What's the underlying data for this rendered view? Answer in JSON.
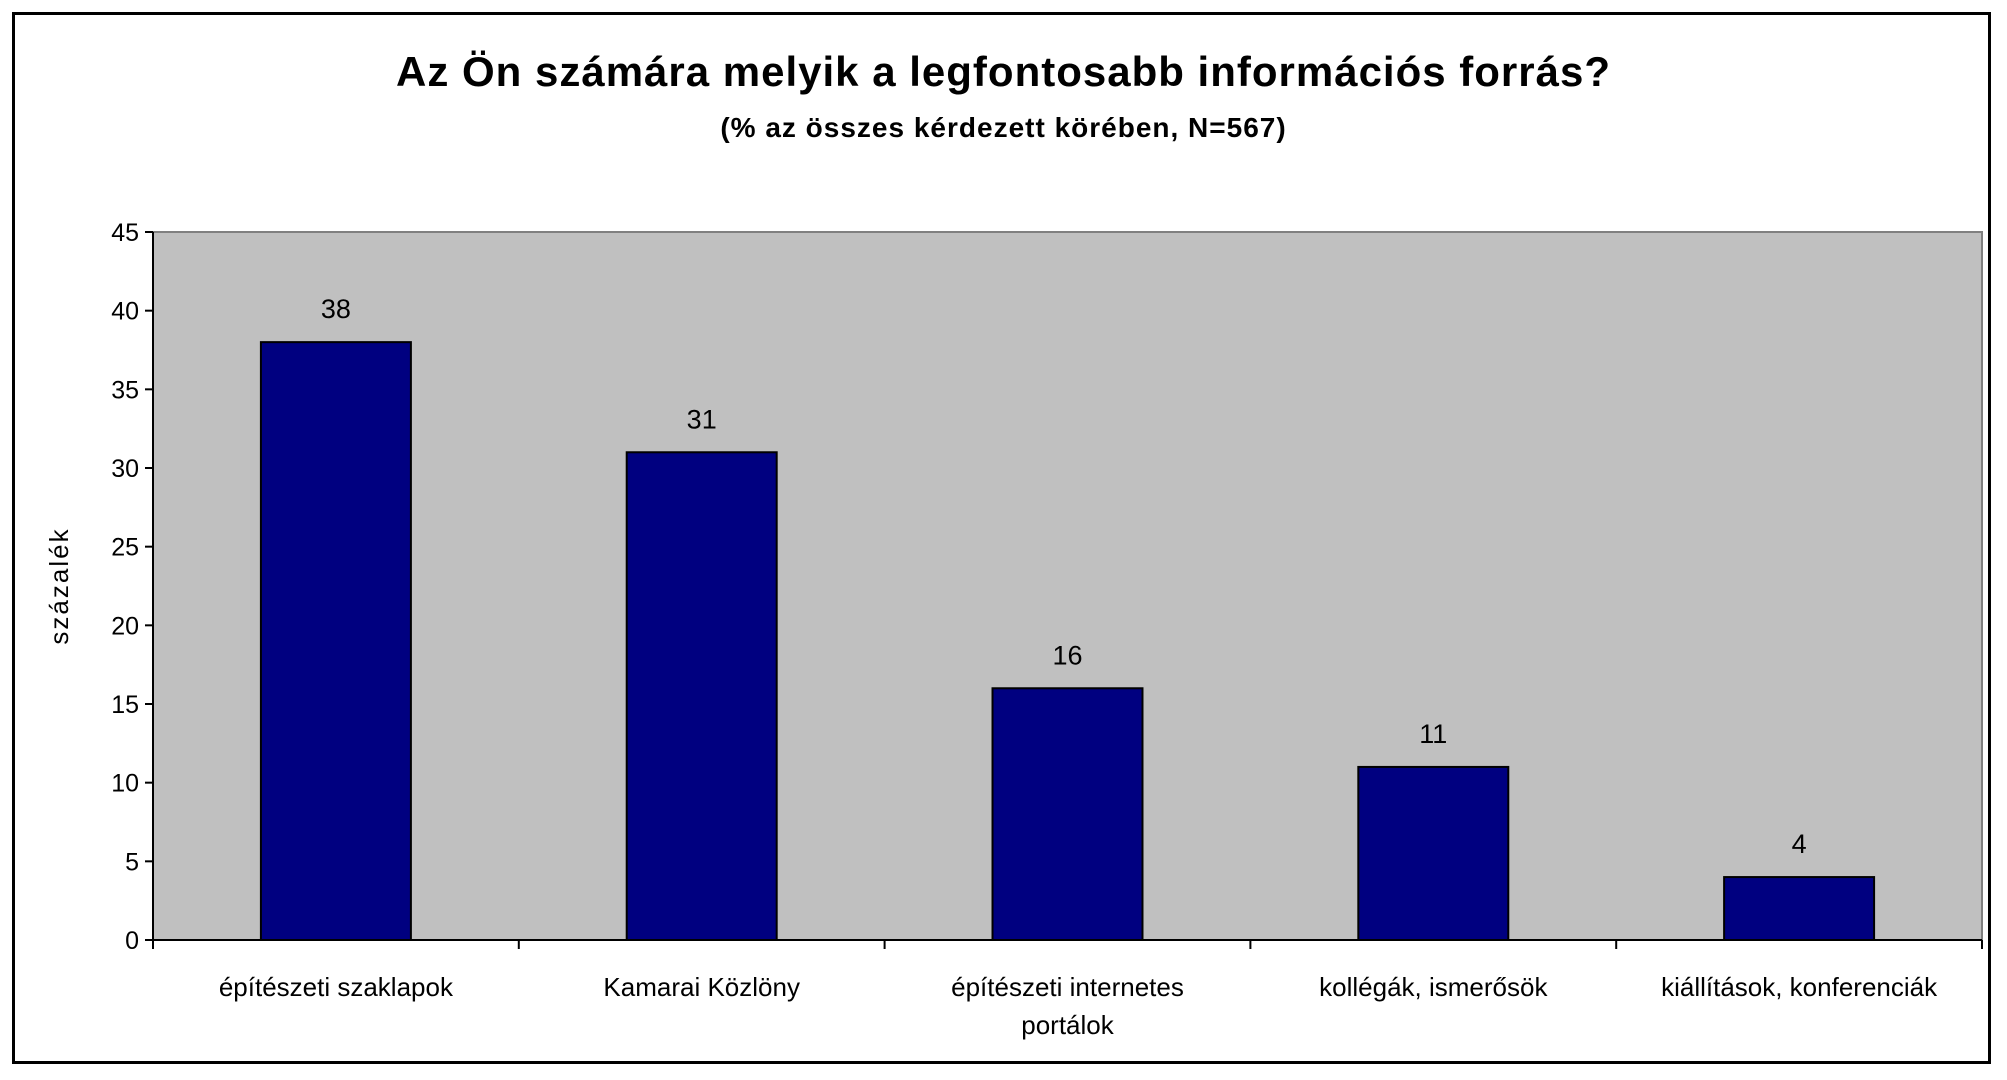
{
  "chart_data": {
    "type": "bar",
    "title": "Az Ön számára melyik a legfontosabb információs forrás?",
    "subtitle": "(% az összes kérdezett körében, N=567)",
    "xlabel": "",
    "ylabel": "százalék",
    "ylim": [
      0,
      45
    ],
    "yticks": [
      0,
      5,
      10,
      15,
      20,
      25,
      30,
      35,
      40,
      45
    ],
    "categories": [
      [
        "építészeti szaklapok"
      ],
      [
        "Kamarai Közlöny"
      ],
      [
        "építészeti internetes",
        "portálok"
      ],
      [
        "kollégák, ismerősök"
      ],
      [
        "kiállítások, konferenciák"
      ]
    ],
    "values": [
      38,
      31,
      16,
      11,
      4
    ],
    "data_labels": [
      "38",
      "31",
      "16",
      "11",
      "4"
    ],
    "grid": false,
    "legend": "none",
    "colors": {
      "bar": "#000080",
      "plot_background": "#C0C0C0",
      "chart_background": "#FFFFFF"
    }
  }
}
